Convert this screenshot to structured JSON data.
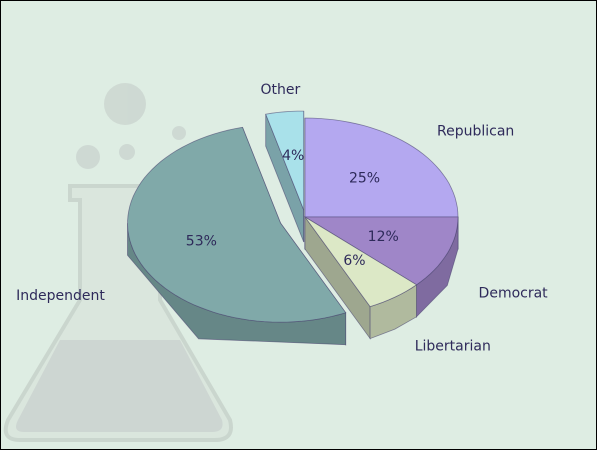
{
  "chart_data": {
    "type": "pie",
    "categories": [
      "Republican",
      "Democrat",
      "Libertarian",
      "Independent",
      "Other"
    ],
    "values": [
      25,
      12,
      6,
      53,
      4
    ],
    "value_labels": [
      "25%",
      "12%",
      "6%",
      "53%",
      "4%"
    ],
    "colors": [
      "#b4a8f0",
      "#9f86c8",
      "#dce8c6",
      "#80a9a9",
      "#a9e1ea"
    ],
    "exploded": [
      "Independent",
      "Other"
    ]
  }
}
